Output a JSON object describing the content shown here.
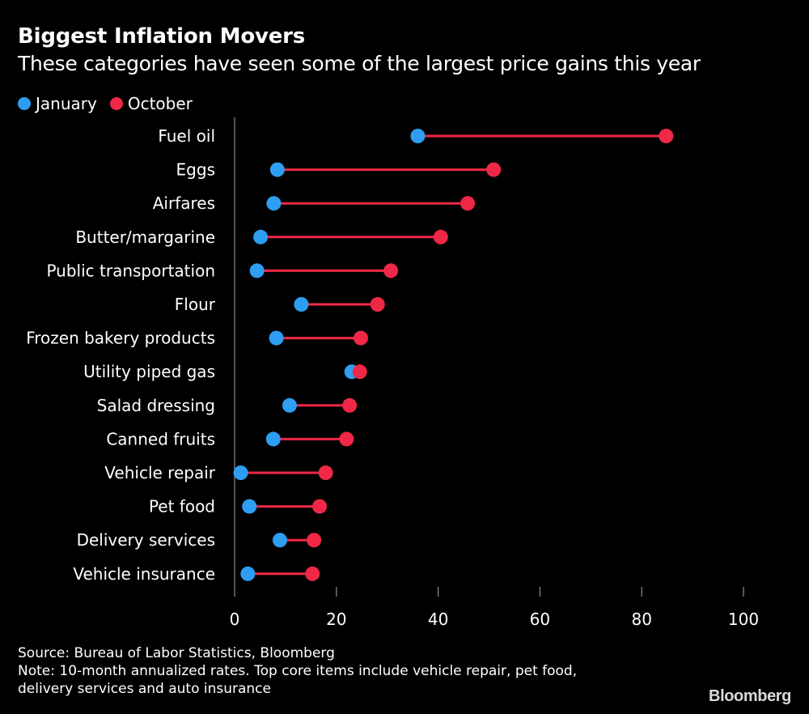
{
  "header": {
    "title": "Biggest Inflation Movers",
    "subtitle": "These categories have seen some of the largest price gains this year"
  },
  "colors": {
    "january": "#2e9ef2",
    "october": "#ee2846",
    "connector": "#ee2846",
    "axis": "#8c8c8c",
    "background": "#000000",
    "text": "#ffffff"
  },
  "chart_data": {
    "type": "dumbbell",
    "categories": [
      "Fuel oil",
      "Eggs",
      "Airfares",
      "Butter/margarine",
      "Public transportation",
      "Flour",
      "Frozen bakery products",
      "Utility piped gas",
      "Salad dressing",
      "Canned fruits",
      "Vehicle repair",
      "Pet food",
      "Delivery services",
      "Vehicle insurance"
    ],
    "series": [
      {
        "name": "January",
        "values": [
          36,
          8.4,
          7.7,
          5.1,
          4.4,
          13.1,
          8.2,
          23,
          10.8,
          7.6,
          1.2,
          2.9,
          8.9,
          2.6
        ]
      },
      {
        "name": "October",
        "values": [
          84.8,
          50.9,
          45.8,
          40.5,
          30.7,
          28.1,
          24.8,
          24.6,
          22.6,
          22,
          17.9,
          16.7,
          15.6,
          15.3
        ]
      }
    ],
    "xlim": [
      0,
      100
    ],
    "xticks": [
      "0",
      "20",
      "40",
      "60",
      "80",
      "100"
    ],
    "xlabel": "",
    "ylabel": "",
    "legend_position": "top-left",
    "grid": false
  },
  "footer": {
    "source": "Source: Bureau of Labor Statistics, Bloomberg",
    "note_line1": "Note: 10-month annualized rates. Top core items include vehicle repair, pet food,",
    "note_line2": "delivery services and auto insurance",
    "brand": "Bloomberg"
  }
}
